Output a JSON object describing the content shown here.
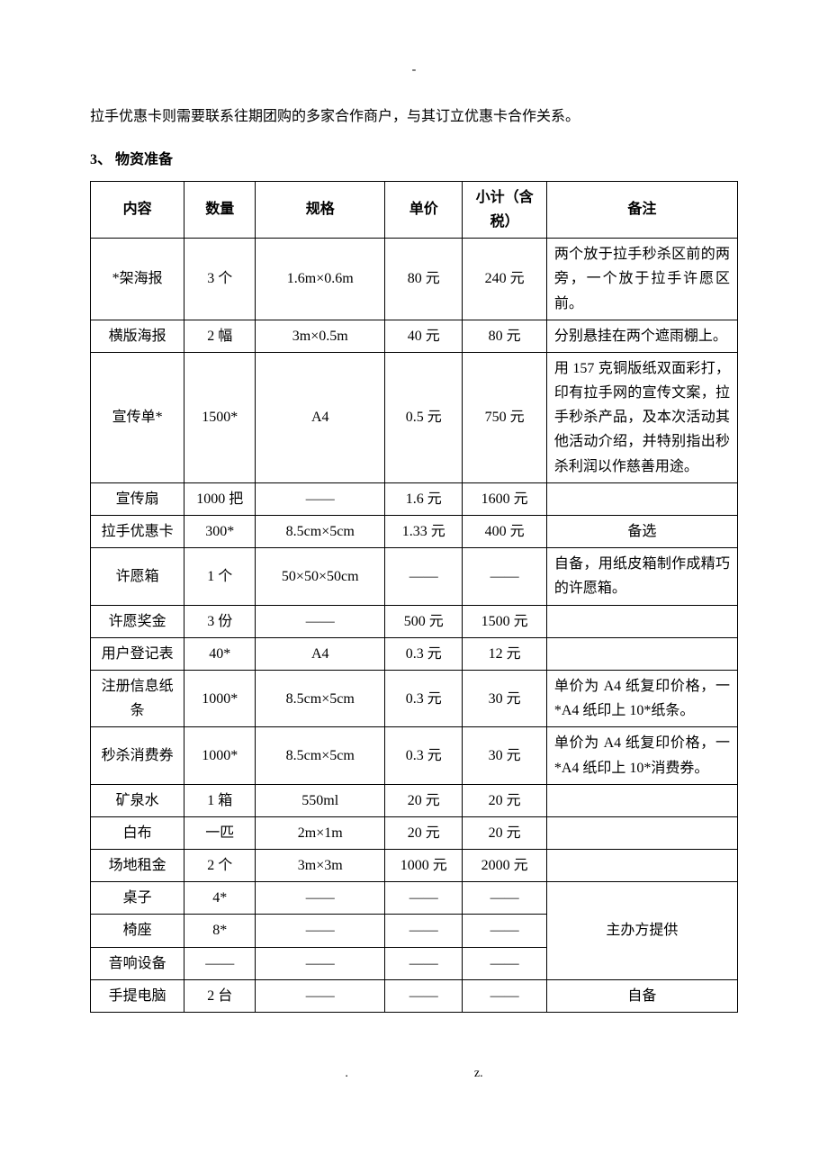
{
  "topMark": "-",
  "introPara": "拉手优惠卡则需要联系往期团购的多家合作商户，与其订立优惠卡合作关系。",
  "sectionHeading": "3、 物资准备",
  "table": {
    "headers": {
      "content": "内容",
      "qty": "数量",
      "spec": "规格",
      "price": "单价",
      "subtotal": "小计（含税）",
      "note": "备注"
    },
    "rows": [
      {
        "content": "*架海报",
        "qty": "3 个",
        "spec": "1.6m×0.6m",
        "price": "80 元",
        "subtotal": "240 元",
        "note": "两个放于拉手秒杀区前的两旁，一个放于拉手许愿区前。",
        "noteAlign": "left"
      },
      {
        "content": "横版海报",
        "qty": "2 幅",
        "spec": "3m×0.5m",
        "price": "40 元",
        "subtotal": "80 元",
        "note": "分别悬挂在两个遮雨棚上。",
        "noteAlign": "left"
      },
      {
        "content": "宣传单*",
        "qty": "1500*",
        "spec": "A4",
        "price": "0.5 元",
        "subtotal": "750 元",
        "note": "用 157 克铜版纸双面彩打，印有拉手网的宣传文案，拉手秒杀产品，及本次活动其他活动介绍，并特别指出秒杀利润以作慈善用途。",
        "noteAlign": "left"
      },
      {
        "content": "宣传扇",
        "qty": "1000 把",
        "spec": "——",
        "price": "1.6 元",
        "subtotal": "1600 元",
        "note": "",
        "noteAlign": "left"
      },
      {
        "content": "拉手优惠卡",
        "qty": "300*",
        "spec": "8.5cm×5cm",
        "price": "1.33 元",
        "subtotal": "400 元",
        "note": "备选",
        "noteAlign": "center"
      },
      {
        "content": "许愿箱",
        "qty": "1 个",
        "spec": "50×50×50cm",
        "price": "——",
        "subtotal": "——",
        "note": "自备，用纸皮箱制作成精巧的许愿箱。",
        "noteAlign": "left"
      },
      {
        "content": "许愿奖金",
        "qty": "3 份",
        "spec": "——",
        "price": "500 元",
        "subtotal": "1500 元",
        "note": "",
        "noteAlign": "left"
      },
      {
        "content": "用户登记表",
        "qty": "40*",
        "spec": "A4",
        "price": "0.3 元",
        "subtotal": "12 元",
        "note": "",
        "noteAlign": "left"
      },
      {
        "content": "注册信息纸条",
        "qty": "1000*",
        "spec": "8.5cm×5cm",
        "price": "0.3 元",
        "subtotal": "30 元",
        "note": "单价为 A4 纸复印价格，一*A4 纸印上 10*纸条。",
        "noteAlign": "left"
      },
      {
        "content": "秒杀消费券",
        "qty": "1000*",
        "spec": "8.5cm×5cm",
        "price": "0.3 元",
        "subtotal": "30 元",
        "note": "单价为 A4 纸复印价格，一*A4 纸印上 10*消费券。",
        "noteAlign": "left"
      },
      {
        "content": "矿泉水",
        "qty": "1 箱",
        "spec": "550ml",
        "price": "20 元",
        "subtotal": "20 元",
        "note": "",
        "noteAlign": "left"
      },
      {
        "content": "白布",
        "qty": "一匹",
        "spec": "2m×1m",
        "price": "20 元",
        "subtotal": "20 元",
        "note": "",
        "noteAlign": "left"
      },
      {
        "content": "场地租金",
        "qty": "2 个",
        "spec": "3m×3m",
        "price": "1000 元",
        "subtotal": "2000 元",
        "note": "",
        "noteAlign": "left"
      }
    ],
    "groupA": {
      "rows": [
        {
          "content": "桌子",
          "qty": "4*",
          "spec": "——",
          "price": "——",
          "subtotal": "——"
        },
        {
          "content": "椅座",
          "qty": "8*",
          "spec": "——",
          "price": "——",
          "subtotal": "——"
        },
        {
          "content": "音响设备",
          "qty": "——",
          "spec": "——",
          "price": "——",
          "subtotal": "——"
        }
      ],
      "note": "主办方提供"
    },
    "lastRow": {
      "content": "手提电脑",
      "qty": "2 台",
      "spec": "——",
      "price": "——",
      "subtotal": "——",
      "note": "自备",
      "noteAlign": "center"
    }
  },
  "footer": {
    "left": ".",
    "right": "z."
  }
}
